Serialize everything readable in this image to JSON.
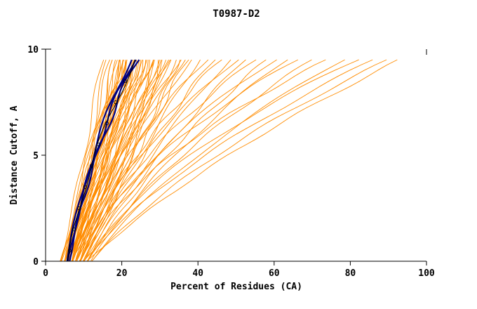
{
  "chart_data": {
    "type": "line",
    "title": "T0987-D2",
    "xlabel": "Percent of Residues (CA)",
    "ylabel": "Distance Cutoff, A",
    "xlim": [
      0,
      100
    ],
    "ylim": [
      0,
      10
    ],
    "x_ticks": [
      0,
      20,
      40,
      60,
      80,
      100
    ],
    "y_ticks": [
      0,
      5,
      10
    ],
    "grid": false,
    "legend": "none",
    "y_data_max": 9.5,
    "jitter": 0.7,
    "colors": {
      "models": "#FF8C00",
      "highlight": "#000080",
      "highlight_edge": "#000000",
      "axis": "#000000",
      "background": "#FFFFFF"
    },
    "series_format": "[x_at_y0, x_at_y5, x_at_y9.5] in percent",
    "orange_series": [
      [
        4,
        11,
        16
      ],
      [
        5,
        12,
        18
      ],
      [
        4,
        12,
        19
      ],
      [
        5,
        13,
        20
      ],
      [
        6,
        13,
        20
      ],
      [
        5,
        14,
        21
      ],
      [
        6,
        14,
        22
      ],
      [
        4,
        13,
        22
      ],
      [
        6,
        15,
        23
      ],
      [
        5,
        14,
        23
      ],
      [
        7,
        15,
        24
      ],
      [
        6,
        16,
        24
      ],
      [
        5,
        15,
        25
      ],
      [
        7,
        16,
        25
      ],
      [
        6,
        17,
        26
      ],
      [
        8,
        17,
        26
      ],
      [
        5,
        16,
        27
      ],
      [
        7,
        18,
        27
      ],
      [
        6,
        17,
        28
      ],
      [
        8,
        18,
        28
      ],
      [
        7,
        19,
        29
      ],
      [
        6,
        18,
        30
      ],
      [
        9,
        19,
        30
      ],
      [
        7,
        20,
        31
      ],
      [
        8,
        21,
        32
      ],
      [
        6,
        19,
        33
      ],
      [
        9,
        22,
        34
      ],
      [
        7,
        20,
        35
      ],
      [
        8,
        23,
        36
      ],
      [
        10,
        24,
        37
      ],
      [
        7,
        21,
        38
      ],
      [
        9,
        25,
        40
      ],
      [
        8,
        22,
        42
      ],
      [
        10,
        26,
        44
      ],
      [
        9,
        24,
        46
      ],
      [
        11,
        28,
        48
      ],
      [
        8,
        25,
        50
      ],
      [
        10,
        30,
        52
      ],
      [
        9,
        27,
        55
      ],
      [
        11,
        32,
        58
      ],
      [
        10,
        29,
        60
      ],
      [
        12,
        34,
        63
      ],
      [
        9,
        30,
        66
      ],
      [
        11,
        36,
        70
      ],
      [
        10,
        33,
        74
      ],
      [
        12,
        40,
        78
      ],
      [
        11,
        38,
        82
      ],
      [
        10,
        42,
        86
      ],
      [
        12,
        45,
        90
      ],
      [
        11,
        48,
        93
      ],
      [
        4,
        10,
        15
      ],
      [
        5,
        11,
        17
      ],
      [
        6,
        12,
        18
      ],
      [
        4,
        14,
        21
      ],
      [
        7,
        14,
        21
      ],
      [
        5,
        13,
        19
      ],
      [
        6,
        16,
        23
      ],
      [
        8,
        16,
        24
      ],
      [
        5,
        12,
        20
      ],
      [
        7,
        17,
        26
      ],
      [
        6,
        14,
        20
      ],
      [
        8,
        19,
        29
      ],
      [
        7,
        15,
        22
      ],
      [
        9,
        20,
        31
      ],
      [
        6,
        13,
        21
      ],
      [
        8,
        20,
        33
      ],
      [
        9,
        21,
        28
      ],
      [
        10,
        22,
        30
      ],
      [
        7,
        16,
        24
      ],
      [
        9,
        23,
        35
      ]
    ],
    "dark_series": [
      [
        5.5,
        12.5,
        22
      ],
      [
        6,
        13,
        23
      ],
      [
        6.2,
        13.5,
        24
      ]
    ],
    "black_series": [
      [
        5.8,
        13,
        23.5
      ]
    ]
  }
}
